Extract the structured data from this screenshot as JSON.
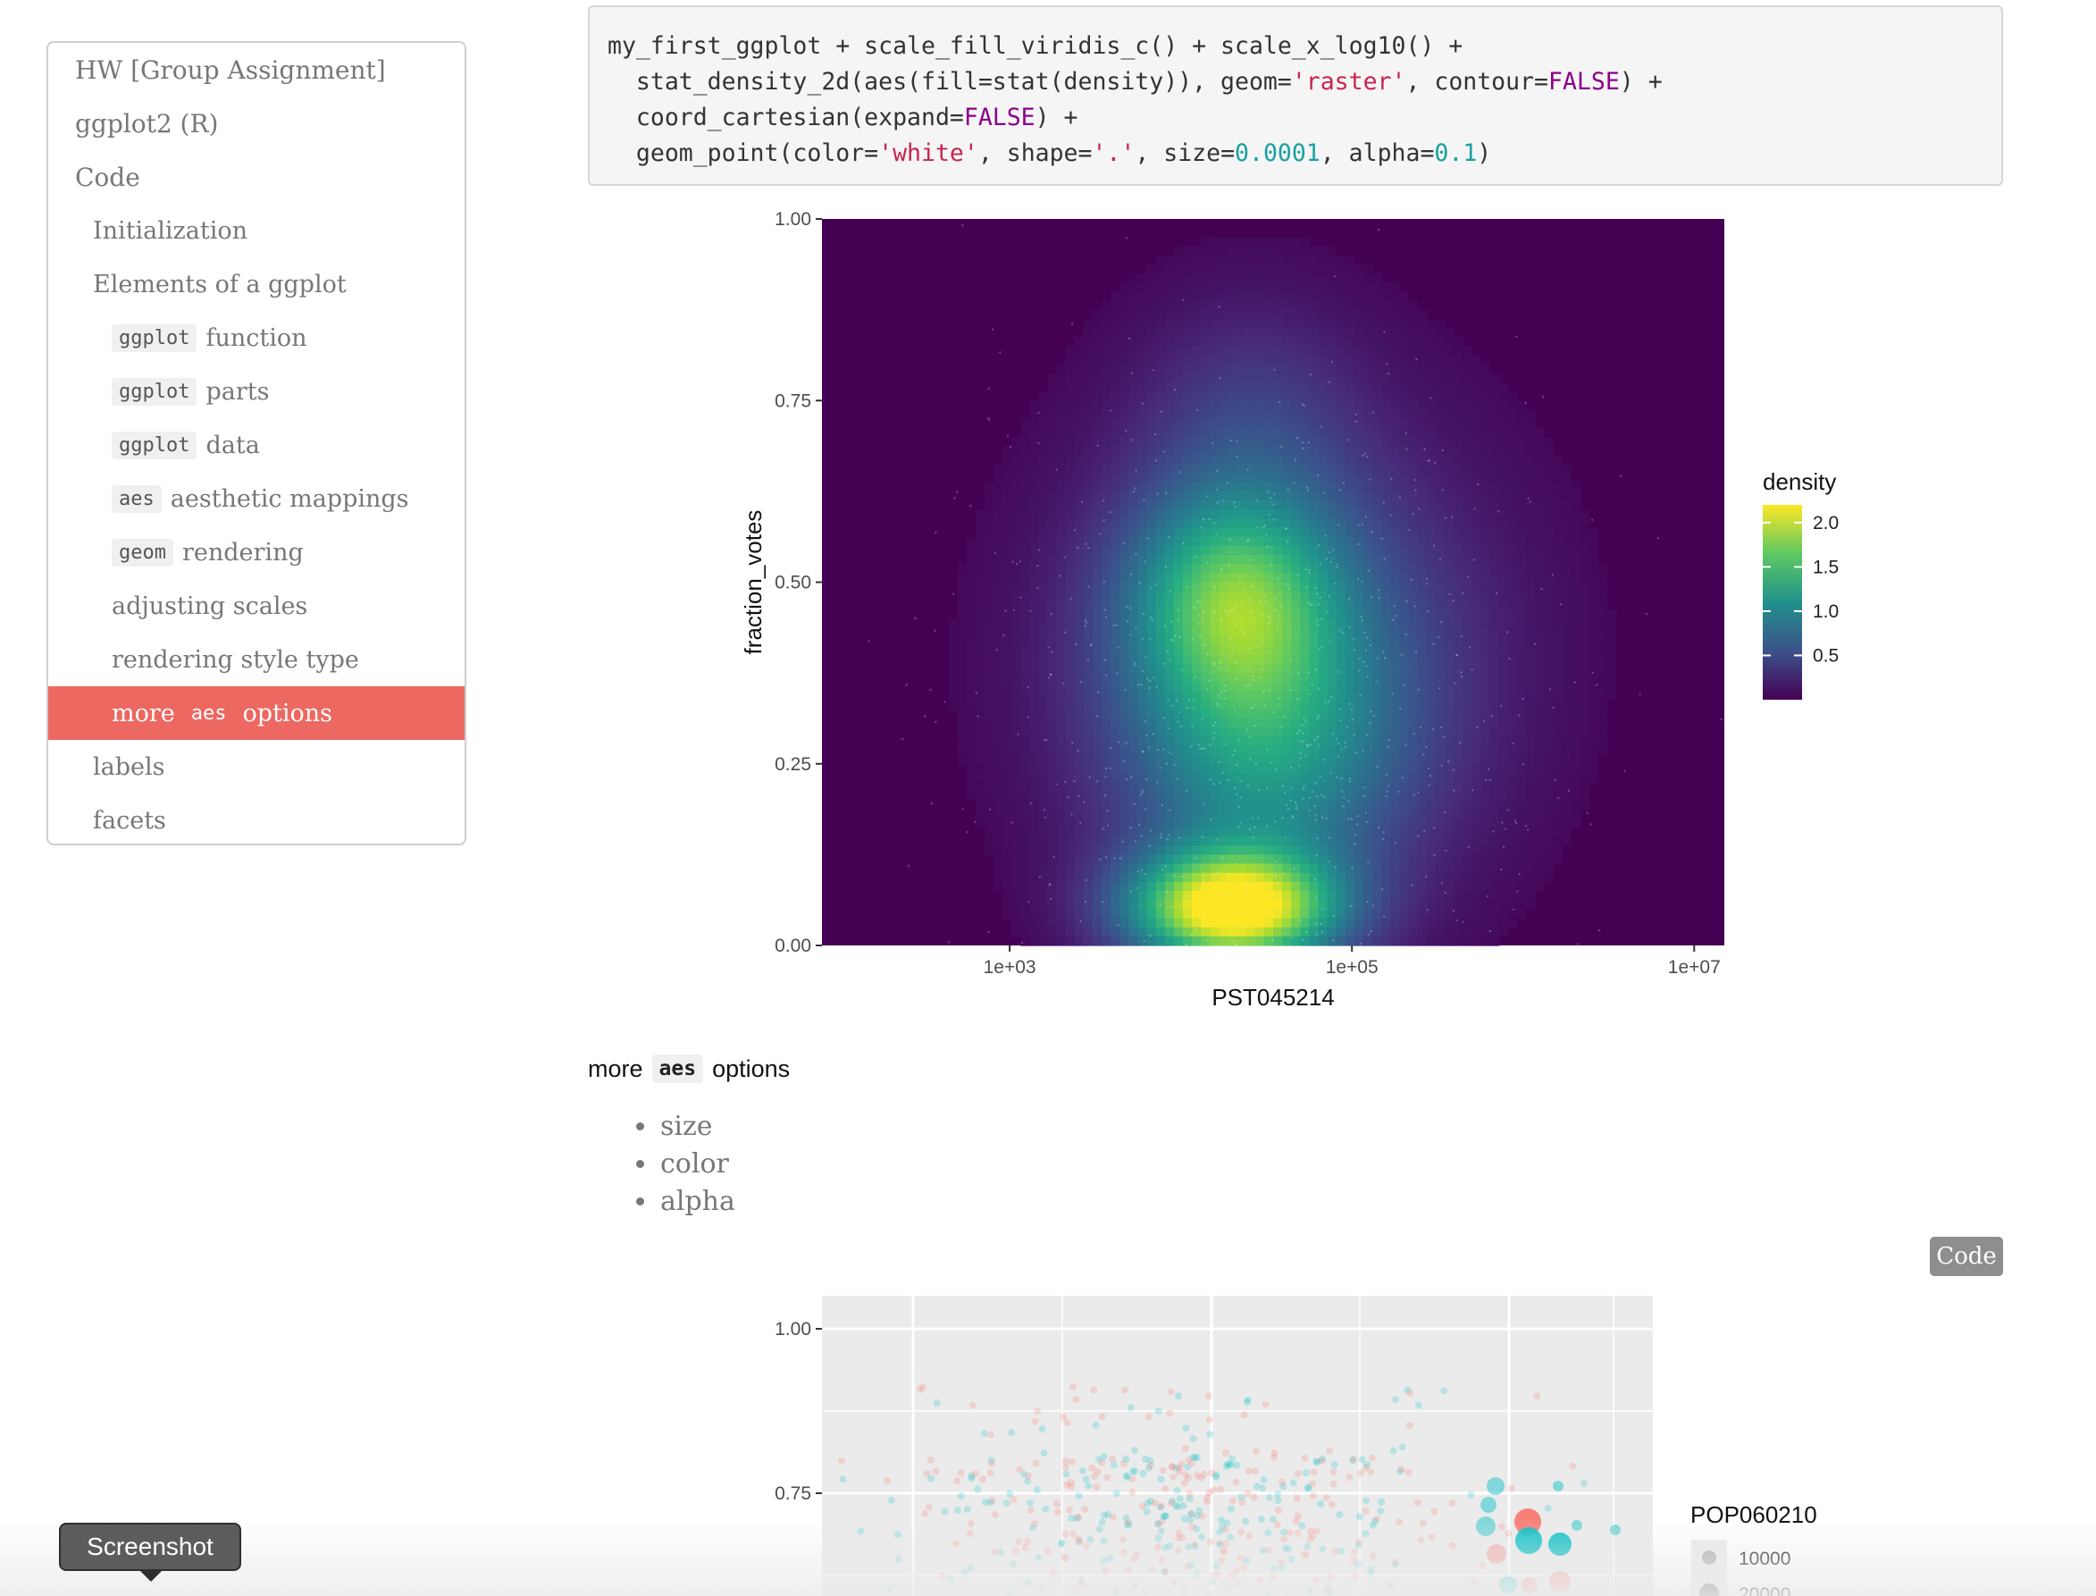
{
  "toc": {
    "items": [
      {
        "level": 1,
        "label": "HW [Group Assignment]"
      },
      {
        "level": 1,
        "label": "ggplot2 (R)"
      },
      {
        "level": 1,
        "label": "Code"
      },
      {
        "level": 2,
        "label": "Initialization"
      },
      {
        "level": 2,
        "label": "Elements of a ggplot"
      },
      {
        "level": 3,
        "code": "ggplot",
        "label": "function"
      },
      {
        "level": 3,
        "code": "ggplot",
        "label": "parts"
      },
      {
        "level": 3,
        "code": "ggplot",
        "label": "data"
      },
      {
        "level": 3,
        "code": "aes",
        "label": "aesthetic mappings"
      },
      {
        "level": 3,
        "code": "geom",
        "label": "rendering"
      },
      {
        "level": 3,
        "label": "adjusting scales"
      },
      {
        "level": 3,
        "label": "rendering style type"
      },
      {
        "level": 3,
        "code": "aes",
        "label_pre": "more",
        "label": "options",
        "active": true
      },
      {
        "level": 2,
        "label": "labels"
      },
      {
        "level": 2,
        "label": "facets"
      }
    ]
  },
  "code_block": {
    "lines": [
      [
        {
          "t": "my_first_ggplot + scale_fill_viridis_c() + scale_x_log10() +"
        }
      ],
      [
        {
          "t": "  stat_density_2d(aes(fill=stat(density)), geom="
        },
        {
          "t": "'raster'",
          "c": "str"
        },
        {
          "t": ", contour="
        },
        {
          "t": "FALSE",
          "c": "kw"
        },
        {
          "t": ") +"
        }
      ],
      [
        {
          "t": "  coord_cartesian(expand="
        },
        {
          "t": "FALSE",
          "c": "kw"
        },
        {
          "t": ") +"
        }
      ],
      [
        {
          "t": "  geom_point(color="
        },
        {
          "t": "'white'",
          "c": "str"
        },
        {
          "t": ", shape="
        },
        {
          "t": "'.'",
          "c": "str"
        },
        {
          "t": ", size="
        },
        {
          "t": "0.0001",
          "c": "num"
        },
        {
          "t": ", alpha="
        },
        {
          "t": "0.1",
          "c": "num"
        },
        {
          "t": ")"
        }
      ]
    ]
  },
  "section": {
    "heading_pre": "more",
    "heading_code": "aes",
    "heading_post": "options",
    "bullets": [
      "size",
      "color",
      "alpha"
    ],
    "code_button": "Code"
  },
  "chart_data": [
    {
      "type": "heatmap",
      "xlabel": "PST045214",
      "ylabel": "fraction_votes",
      "x_scale": "log10",
      "x_ticks": [
        "1e+03",
        "1e+05",
        "1e+07"
      ],
      "x_tick_values": [
        1000,
        100000,
        10000000
      ],
      "xlim": [
        80,
        15000000
      ],
      "y_ticks": [
        "0.00",
        "0.25",
        "0.50",
        "0.75",
        "1.00"
      ],
      "y_tick_values": [
        0,
        0.25,
        0.5,
        0.75,
        1.0
      ],
      "ylim": [
        0,
        1
      ],
      "legend": {
        "title": "density",
        "position": "right",
        "ticks": [
          "0.5",
          "1.0",
          "1.5",
          "2.0"
        ],
        "tick_values": [
          0.5,
          1.0,
          1.5,
          2.0
        ],
        "max": 2.2
      },
      "density_peaks": [
        {
          "x": 20000,
          "y": 0.05,
          "density": 2.2
        },
        {
          "x": 20000,
          "y": 0.48,
          "density": 1.1
        },
        {
          "x": 30000,
          "y": 0.25,
          "density": 0.9
        }
      ],
      "colors": {
        "low": "#440154",
        "mid": "#21918c",
        "high": "#fde725",
        "points": "#ffffff"
      }
    },
    {
      "type": "scatter",
      "y_ticks": [
        "0.75",
        "1.00"
      ],
      "y_tick_values": [
        0.75,
        1.0
      ],
      "legend": {
        "title": "POP060210",
        "entries": [
          "10000",
          "20000"
        ],
        "position": "right"
      },
      "series": [
        {
          "color": "#f8766d"
        },
        {
          "color": "#00bfc4"
        }
      ],
      "colors": {
        "panel": "#ebebeb",
        "grid": "#ffffff"
      }
    }
  ],
  "screenshot_tooltip": "Screenshot"
}
